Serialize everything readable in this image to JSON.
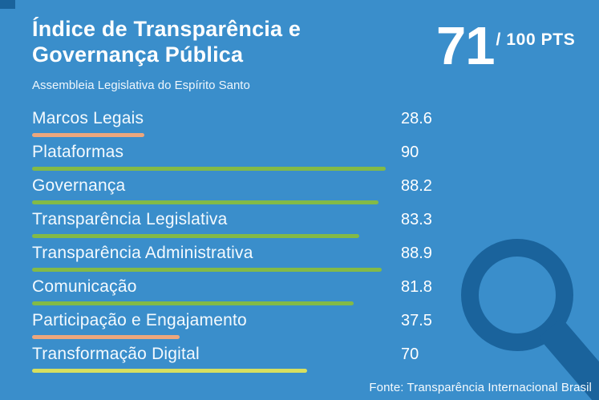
{
  "colors": {
    "background": "#3a8ecb",
    "accent_dark": "#1a639c",
    "bar_salmon": "#eca77d",
    "bar_green": "#83ba47",
    "bar_yellow": "#d7df5f"
  },
  "header": {
    "title": "Índice de Transparência e Governança Pública",
    "subtitle": "Assembleia Legislativa do Espírito Santo",
    "score_value": "71",
    "score_suffix": "/ 100 PTS"
  },
  "indicators": [
    {
      "label": "Marcos Legais",
      "value": "28.6",
      "score": 28.6,
      "bar_color": "#eca77d"
    },
    {
      "label": "Plataformas",
      "value": "90",
      "score": 90,
      "bar_color": "#83ba47"
    },
    {
      "label": "Governança",
      "value": "88.2",
      "score": 88.2,
      "bar_color": "#83ba47"
    },
    {
      "label": "Transparência Legislativa",
      "value": "83.3",
      "score": 83.3,
      "bar_color": "#83ba47"
    },
    {
      "label": "Transparência Administrativa",
      "value": "88.9",
      "score": 88.9,
      "bar_color": "#83ba47"
    },
    {
      "label": "Comunicação",
      "value": "81.8",
      "score": 81.8,
      "bar_color": "#83ba47"
    },
    {
      "label": "Participação e Engajamento",
      "value": "37.5",
      "score": 37.5,
      "bar_color": "#eca77d"
    },
    {
      "label": "Transformação Digital",
      "value": "70",
      "score": 70,
      "bar_color": "#d7df5f"
    }
  ],
  "footer": {
    "source": "Fonte: Transparência Internacional Brasil"
  },
  "chart_data": {
    "type": "bar",
    "title": "Índice de Transparência e Governança Pública",
    "subtitle": "Assembleia Legislativa do Espírito Santo",
    "total_score": 71,
    "max_score": 100,
    "categories": [
      "Marcos Legais",
      "Plataformas",
      "Governança",
      "Transparência Legislativa",
      "Transparência Administrativa",
      "Comunicação",
      "Participação e Engajamento",
      "Transformação Digital"
    ],
    "values": [
      28.6,
      90,
      88.2,
      83.3,
      88.9,
      81.8,
      37.5,
      70
    ],
    "xlim": [
      0,
      100
    ],
    "grid": false,
    "legend": false,
    "orientation": "horizontal",
    "source": "Fonte: Transparência Internacional Brasil"
  }
}
